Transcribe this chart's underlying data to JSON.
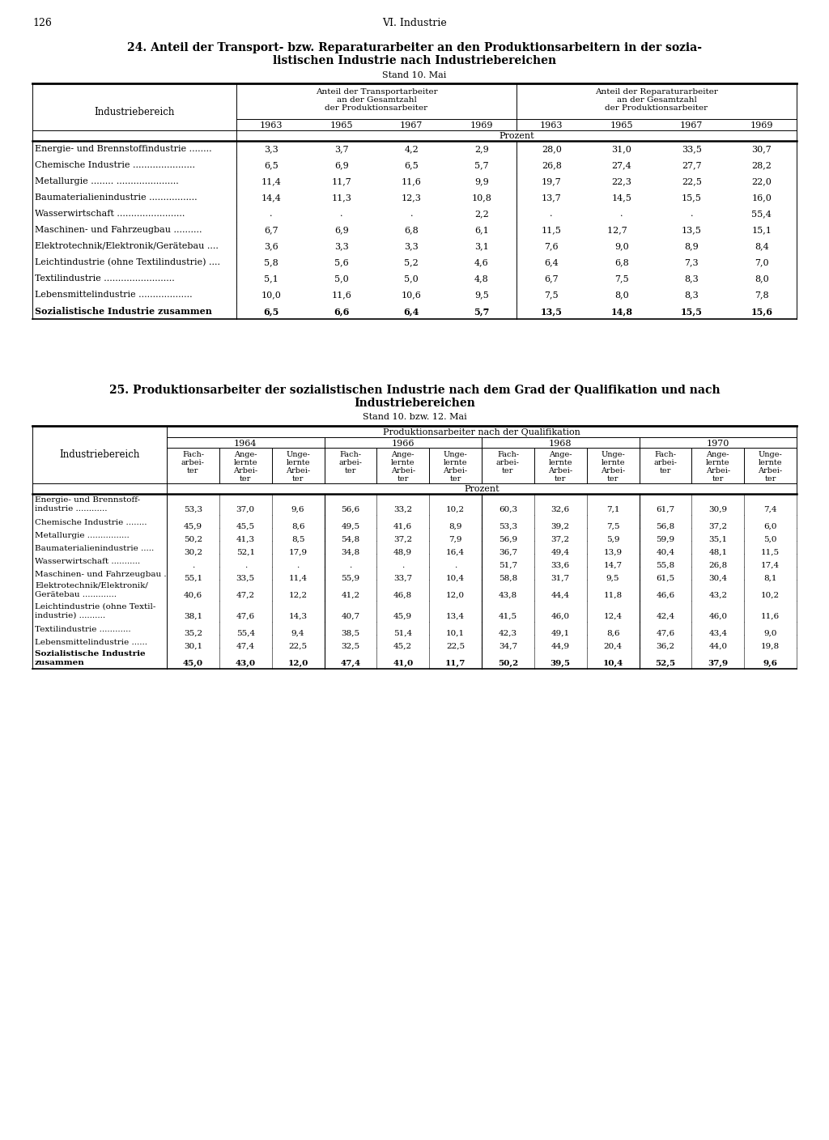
{
  "page_num": "126",
  "header": "VI. Industrie",
  "table1_title_line1": "24. Anteil der Transport- bzw. Reparaturarbeiter an den Produktionsarbeitern in der sozia-",
  "table1_title_line2": "listischen Industrie nach Industriebereichen",
  "table1_subtitle": "Stand 10. Mai",
  "table1_col_label": "Industriebereich",
  "table1_col_header1_line1": "Anteil der Transportarbeiter",
  "table1_col_header1_line2": "an der Gesamtzahl",
  "table1_col_header1_line3": "der Produktionsarbeiter",
  "table1_col_header2_line1": "Anteil der Reparaturarbeiter",
  "table1_col_header2_line2": "an der Gesamtzahl",
  "table1_col_header2_line3": "der Produktionsarbeiter",
  "table1_years": [
    "1963",
    "1965",
    "1967",
    "1969",
    "1963",
    "1965",
    "1967",
    "1969"
  ],
  "table1_prozent": "Prozent",
  "table1_rows": [
    [
      "Energie- und Brennstoffindustrie ........",
      "3,3",
      "3,7",
      "4,2",
      "2,9",
      "28,0",
      "31,0",
      "33,5",
      "30,7"
    ],
    [
      "Chemische Industrie ......................",
      "6,5",
      "6,9",
      "6,5",
      "5,7",
      "26,8",
      "27,4",
      "27,7",
      "28,2"
    ],
    [
      "Metallurgie ........ ......................",
      "11,4",
      "11,7",
      "11,6",
      "9,9",
      "19,7",
      "22,3",
      "22,5",
      "22,0"
    ],
    [
      "Baumaterialienindustrie .................",
      "14,4",
      "11,3",
      "12,3",
      "10,8",
      "13,7",
      "14,5",
      "15,5",
      "16,0"
    ],
    [
      "Wasserwirtschaft ........................",
      ".",
      ".",
      ".",
      "2,2",
      ".",
      ".",
      ".",
      "55,4"
    ],
    [
      "Maschinen- und Fahrzeugbau ..........",
      "6,7",
      "6,9",
      "6,8",
      "6,1",
      "11,5",
      "12,7   ",
      "13,5",
      "15,1"
    ],
    [
      "Elektrotechnik/Elektronik/Gerätebau ....",
      "3,6",
      "3,3",
      "3,3",
      "3,1",
      "7,6",
      "9,0",
      "8,9",
      "8,4"
    ],
    [
      "Leichtindustrie (ohne Textilindustrie) ....",
      "5,8",
      "5,6",
      "5,2",
      "4,6",
      "6,4",
      "6,8",
      "7,3",
      "7,0"
    ],
    [
      "Textilindustrie .........................",
      "5,1",
      "5,0",
      "5,0",
      "4,8",
      "6,7",
      "7,5",
      "8,3",
      "8,0"
    ],
    [
      "Lebensmittelindustrie ...................",
      "10,0",
      "11,6",
      "10,6",
      "9,5",
      "7,5",
      "8,0",
      "8,3",
      "7,8"
    ],
    [
      "Sozialistische Industrie zusammen",
      "6,5",
      "6,6",
      "6,4",
      "5,7",
      "13,5",
      "14,8",
      "15,5",
      "15,6"
    ]
  ],
  "table2_title_line1": "25. Produktionsarbeiter der sozialistischen Industrie nach dem Grad der Qualifikation und nach",
  "table2_title_line2": "Industriebereichen",
  "table2_subtitle": "Stand 10. bzw. 12. Mai",
  "table2_col_label": "Industriebereich",
  "table2_col_main": "Produktionsarbeiter nach der Qualifikation",
  "table2_years": [
    "1964",
    "1966",
    "1968",
    "1970"
  ],
  "table2_prozent": "Prozent",
  "table2_sub_col_labels": [
    [
      "Fach-",
      "arbei-",
      "ter"
    ],
    [
      "Ange-",
      "lernte",
      "Arbei-",
      "ter"
    ],
    [
      "Unge-",
      "lernte",
      "Arbei-",
      "ter"
    ]
  ],
  "table2_rows": [
    [
      "Energie- und Brennstoff-",
      "industrie ............",
      "53,3",
      "37,0",
      "9,6",
      "56,6",
      "33,2",
      "10,2",
      "60,3",
      "32,6",
      "7,1",
      "61,7",
      "30,9",
      "7,4"
    ],
    [
      "Chemische Industrie ........",
      "",
      "45,9",
      "45,5",
      "8,6",
      "49,5",
      "41,6",
      "8,9",
      "53,3",
      "39,2",
      "7,5",
      "56,8",
      "37,2",
      "6,0"
    ],
    [
      "Metallurgie ................",
      "",
      "50,2",
      "41,3",
      "8,5",
      "54,8",
      "37,2",
      "7,9",
      "56,9",
      "37,2",
      "5,9",
      "59,9",
      "35,1",
      "5,0"
    ],
    [
      "Baumaterialienindustrie .....",
      "",
      "30,2",
      "52,1",
      "17,9",
      "34,8",
      "48,9",
      "16,4",
      "36,7",
      "49,4",
      "13,9",
      "40,4",
      "48,1",
      "11,5"
    ],
    [
      "Wasserwirtschaft ...........",
      "",
      ".",
      ".",
      ".",
      ".",
      ".",
      ".",
      "51,7",
      "33,6",
      "14,7",
      "55,8",
      "26,8",
      "17,4"
    ],
    [
      "Maschinen- und Fahrzeugbau .",
      "",
      "55,1",
      "33,5",
      "11,4",
      "55,9",
      "33,7",
      "10,4",
      "58,8",
      "31,7",
      "9,5",
      "61,5",
      "30,4",
      "8,1"
    ],
    [
      "Elektrotechnik/Elektronik/",
      "Gerätebau .............",
      "40,6",
      "47,2",
      "12,2",
      "41,2",
      "46,8",
      "12,0",
      "43,8",
      "44,4",
      "11,8",
      "46,6",
      "43,2",
      "10,2"
    ],
    [
      "Leichtindustrie (ohne Textil-",
      "industrie) ..........",
      "38,1",
      "47,6",
      "14,3",
      "40,7",
      "45,9",
      "13,4",
      "41,5",
      "46,0",
      "12,4",
      "42,4",
      "46,0",
      "11,6"
    ],
    [
      "Textilindustrie ............",
      "",
      "35,2",
      "55,4",
      "9,4",
      "38,5",
      "51,4",
      "10,1",
      "42,3",
      "49,1",
      "8,6",
      "47,6",
      "43,4",
      "9,0"
    ],
    [
      "Lebensmittelindustrie ......",
      "",
      "30,1",
      "47,4",
      "22,5",
      "32,5",
      "45,2",
      "22,5",
      "34,7",
      "44,9",
      "20,4",
      "36,2",
      "44,0",
      "19,8"
    ],
    [
      "Sozialistische Industrie",
      "zusammen",
      "45,0",
      "43,0",
      "12,0",
      "47,4",
      "41,0",
      "11,7",
      "50,2",
      "39,5",
      "10,4",
      "52,5",
      "37,9",
      "9,6"
    ]
  ]
}
